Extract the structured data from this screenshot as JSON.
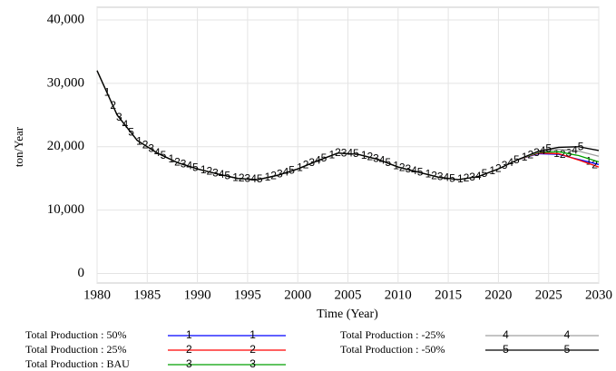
{
  "chart_data": {
    "type": "line",
    "y_label": "ton/Year",
    "x_label": "Time (Year)",
    "x": [
      1980,
      1982,
      1984,
      1986,
      1988,
      1990,
      1992,
      1994,
      1996,
      1998,
      2000,
      2002,
      2004,
      2006,
      2008,
      2010,
      2012,
      2014,
      2016,
      2018,
      2020,
      2022,
      2024,
      2026,
      2028,
      2030
    ],
    "series": [
      {
        "name": "Total Production : 50%",
        "marker": "1",
        "color": "#0000ff",
        "values": [
          32000,
          25000,
          21000,
          19000,
          17500,
          16500,
          15700,
          15000,
          14800,
          15500,
          16500,
          17800,
          19000,
          18800,
          18000,
          16800,
          16000,
          15200,
          14800,
          15300,
          16500,
          18000,
          18900,
          18800,
          18000,
          17200
        ]
      },
      {
        "name": "Total Production : 25%",
        "marker": "2",
        "color": "#ff0000",
        "values": [
          32000,
          25000,
          21000,
          19000,
          17500,
          16500,
          15700,
          15000,
          14800,
          15500,
          16500,
          17800,
          19000,
          18800,
          18000,
          16800,
          16000,
          15200,
          14800,
          15300,
          16500,
          18000,
          19000,
          18900,
          17900,
          16800
        ]
      },
      {
        "name": "Total Production : BAU",
        "marker": "3",
        "color": "#00a000",
        "values": [
          32000,
          25000,
          21000,
          19000,
          17500,
          16500,
          15700,
          15000,
          14800,
          15500,
          16500,
          17800,
          19000,
          18800,
          18000,
          16800,
          16000,
          15200,
          14800,
          15300,
          16500,
          18000,
          19100,
          19200,
          18600,
          17600
        ]
      },
      {
        "name": "Total Production : -25%",
        "marker": "4",
        "color": "#a0a0a0",
        "values": [
          32000,
          25000,
          21000,
          19000,
          17500,
          16500,
          15700,
          15000,
          14800,
          15500,
          16500,
          17800,
          19000,
          18800,
          18000,
          16800,
          16000,
          15200,
          14800,
          15300,
          16500,
          18000,
          19200,
          19600,
          19300,
          18500
        ]
      },
      {
        "name": "Total Production : -50%",
        "marker": "5",
        "color": "#000000",
        "values": [
          32000,
          25000,
          21000,
          19000,
          17500,
          16500,
          15700,
          15000,
          14800,
          15500,
          16500,
          17800,
          19000,
          18800,
          18000,
          16800,
          16000,
          15200,
          14800,
          15300,
          16500,
          18000,
          19300,
          19900,
          20000,
          19400
        ]
      }
    ],
    "xlim": [
      1980,
      2030
    ],
    "xticks": [
      1980,
      1985,
      1990,
      1995,
      2000,
      2005,
      2010,
      2015,
      2020,
      2025,
      2030
    ],
    "ylim": [
      -1500,
      42000
    ],
    "yticks": [
      {
        "value": 0,
        "label": "0"
      },
      {
        "value": 10000,
        "label": "10,000"
      },
      {
        "value": 20000,
        "label": "20,000"
      },
      {
        "value": 30000,
        "label": "30,000"
      },
      {
        "value": 40000,
        "label": "40,000"
      }
    ],
    "grid": true
  }
}
